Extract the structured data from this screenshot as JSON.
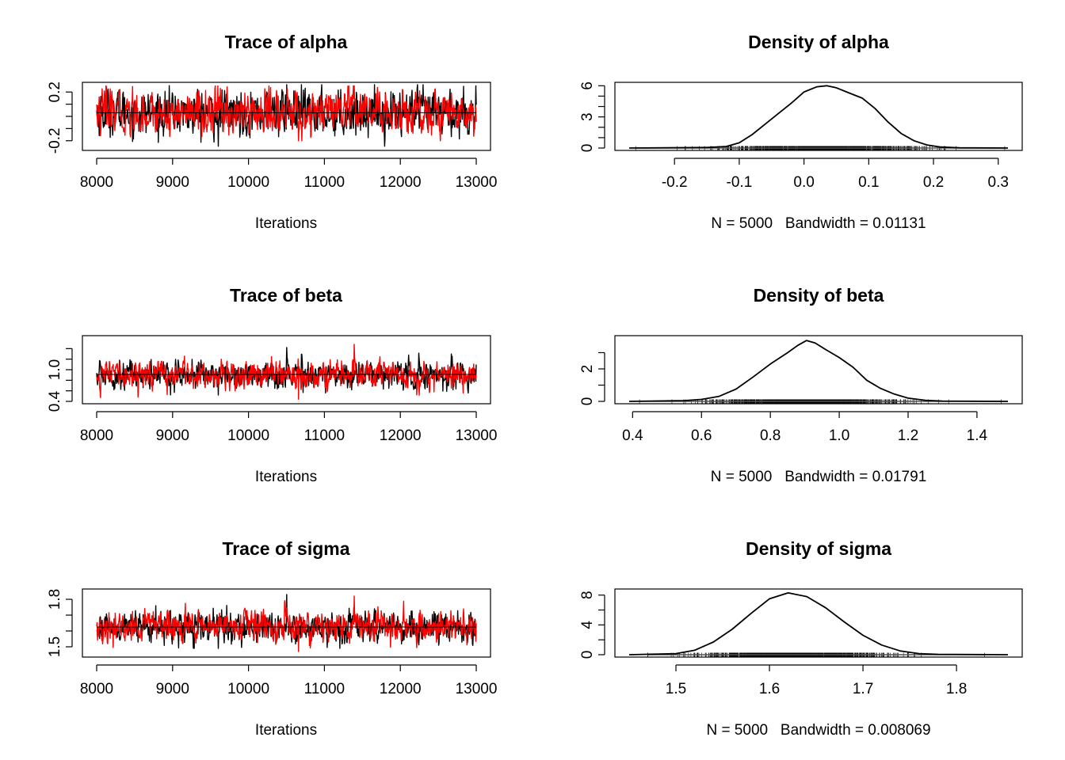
{
  "chart_data": [
    {
      "type": "line",
      "title": "Trace of alpha",
      "xlabel": "Iterations",
      "ylabel": "",
      "xlim": [
        8000,
        13000
      ],
      "ylim": [
        -0.26,
        0.26
      ],
      "xticks": [
        8000,
        9000,
        10000,
        11000,
        12000,
        13000
      ],
      "xtick_labels": [
        "8000",
        "9000",
        "10000",
        "11000",
        "12000",
        "13000"
      ],
      "yticks": [
        -0.2,
        -0.1,
        0.0,
        0.1,
        0.2
      ],
      "ytick_labels": [
        "-0.2",
        "",
        "",
        "",
        "0.2"
      ],
      "series": [
        {
          "color": "#000000",
          "center": 0.03,
          "spread": 0.085,
          "min": -0.245,
          "max": 0.26
        },
        {
          "color": "#ff0000",
          "center": 0.03,
          "spread": 0.085,
          "min": -0.2,
          "max": 0.25
        }
      ],
      "mean_line": 0.03
    },
    {
      "type": "area",
      "title": "Density of alpha",
      "subtitle": "N = 5000   Bandwidth = 0.01131",
      "xlim": [
        -0.27,
        0.315
      ],
      "ylim": [
        0,
        6.1
      ],
      "xticks": [
        -0.2,
        -0.1,
        0.0,
        0.1,
        0.2,
        0.3
      ],
      "xtick_labels": [
        "-0.2",
        "-0.1",
        "0.0",
        "0.1",
        "0.2",
        "0.3"
      ],
      "yticks": [
        0,
        1,
        2,
        3,
        4,
        5,
        6
      ],
      "ytick_labels": [
        "0",
        "",
        "",
        "3",
        "",
        "",
        "6"
      ],
      "x": [
        -0.27,
        -0.15,
        -0.12,
        -0.1,
        -0.08,
        -0.06,
        -0.04,
        -0.02,
        0.0,
        0.02,
        0.035,
        0.05,
        0.07,
        0.09,
        0.11,
        0.13,
        0.15,
        0.17,
        0.19,
        0.21,
        0.24,
        0.315
      ],
      "y": [
        0.0,
        0.05,
        0.15,
        0.5,
        1.3,
        2.3,
        3.3,
        4.3,
        5.4,
        5.9,
        6.0,
        5.8,
        5.3,
        4.8,
        3.8,
        2.5,
        1.4,
        0.7,
        0.3,
        0.1,
        0.02,
        0.0
      ],
      "rug": {
        "min": -0.26,
        "max": 0.31,
        "center": 0.03,
        "spread": 0.07
      }
    },
    {
      "type": "line",
      "title": "Trace of beta",
      "xlabel": "Iterations",
      "ylabel": "",
      "xlim": [
        8000,
        13000
      ],
      "ylim": [
        0.4,
        1.6
      ],
      "xticks": [
        8000,
        9000,
        10000,
        11000,
        12000,
        13000
      ],
      "xtick_labels": [
        "8000",
        "9000",
        "10000",
        "11000",
        "12000",
        "13000"
      ],
      "yticks": [
        0.4,
        0.6,
        0.8,
        1.0,
        1.2,
        1.4
      ],
      "ytick_labels": [
        "0.4",
        "",
        "",
        "1.0",
        "",
        ""
      ],
      "series": [
        {
          "color": "#000000",
          "center": 0.91,
          "spread": 0.12,
          "min": 0.52,
          "max": 1.42
        },
        {
          "color": "#ff0000",
          "center": 0.91,
          "spread": 0.12,
          "min": 0.44,
          "max": 1.48
        }
      ],
      "mean_line": 0.91
    },
    {
      "type": "area",
      "title": "Density of beta",
      "subtitle": "N = 5000   Bandwidth = 0.01791",
      "xlim": [
        0.39,
        1.49
      ],
      "ylim": [
        0,
        3.9
      ],
      "xticks": [
        0.4,
        0.6,
        0.8,
        1.0,
        1.2,
        1.4
      ],
      "xtick_labels": [
        "0.4",
        "0.6",
        "0.8",
        "1.0",
        "1.2",
        "1.4"
      ],
      "yticks": [
        0,
        1,
        2,
        3
      ],
      "ytick_labels": [
        "0",
        "",
        "2",
        ""
      ],
      "x": [
        0.39,
        0.55,
        0.6,
        0.65,
        0.7,
        0.75,
        0.8,
        0.85,
        0.88,
        0.905,
        0.93,
        0.96,
        1.0,
        1.04,
        1.08,
        1.12,
        1.16,
        1.2,
        1.25,
        1.3,
        1.49
      ],
      "y": [
        0.0,
        0.05,
        0.12,
        0.3,
        0.75,
        1.5,
        2.3,
        3.0,
        3.45,
        3.75,
        3.6,
        3.2,
        2.7,
        2.1,
        1.3,
        0.8,
        0.45,
        0.2,
        0.07,
        0.02,
        0.0
      ],
      "rug": {
        "min": 0.42,
        "max": 1.47,
        "center": 0.91,
        "spread": 0.12
      }
    },
    {
      "type": "line",
      "title": "Trace of sigma",
      "xlabel": "Iterations",
      "ylabel": "",
      "xlim": [
        8000,
        13000
      ],
      "ylim": [
        1.45,
        1.85
      ],
      "xticks": [
        8000,
        9000,
        10000,
        11000,
        12000,
        13000
      ],
      "xtick_labels": [
        "8000",
        "9000",
        "10000",
        "11000",
        "12000",
        "13000"
      ],
      "yticks": [
        1.5,
        1.6,
        1.7,
        1.8
      ],
      "ytick_labels": [
        "1.5",
        "",
        "",
        "1.8"
      ],
      "series": [
        {
          "color": "#000000",
          "center": 1.625,
          "spread": 0.045,
          "min": 1.49,
          "max": 1.83
        },
        {
          "color": "#ff0000",
          "center": 1.625,
          "spread": 0.045,
          "min": 1.47,
          "max": 1.82
        }
      ],
      "mean_line": 1.625
    },
    {
      "type": "area",
      "title": "Density of sigma",
      "subtitle": "N = 5000   Bandwidth = 0.008069",
      "xlim": [
        1.45,
        1.855
      ],
      "ylim": [
        0,
        8.5
      ],
      "xticks": [
        1.5,
        1.6,
        1.7,
        1.8
      ],
      "xtick_labels": [
        "1.5",
        "1.6",
        "1.7",
        "1.8"
      ],
      "yticks": [
        0,
        2,
        4,
        6,
        8
      ],
      "ytick_labels": [
        "0",
        "",
        "4",
        "",
        "8"
      ],
      "x": [
        1.45,
        1.5,
        1.52,
        1.54,
        1.56,
        1.58,
        1.6,
        1.62,
        1.64,
        1.66,
        1.68,
        1.7,
        1.72,
        1.74,
        1.76,
        1.78,
        1.855
      ],
      "y": [
        0.0,
        0.15,
        0.6,
        1.7,
        3.4,
        5.5,
        7.5,
        8.3,
        7.8,
        6.3,
        4.4,
        2.6,
        1.3,
        0.5,
        0.15,
        0.05,
        0.0
      ],
      "rug": {
        "min": 1.47,
        "max": 1.83,
        "center": 1.625,
        "spread": 0.045
      }
    }
  ]
}
